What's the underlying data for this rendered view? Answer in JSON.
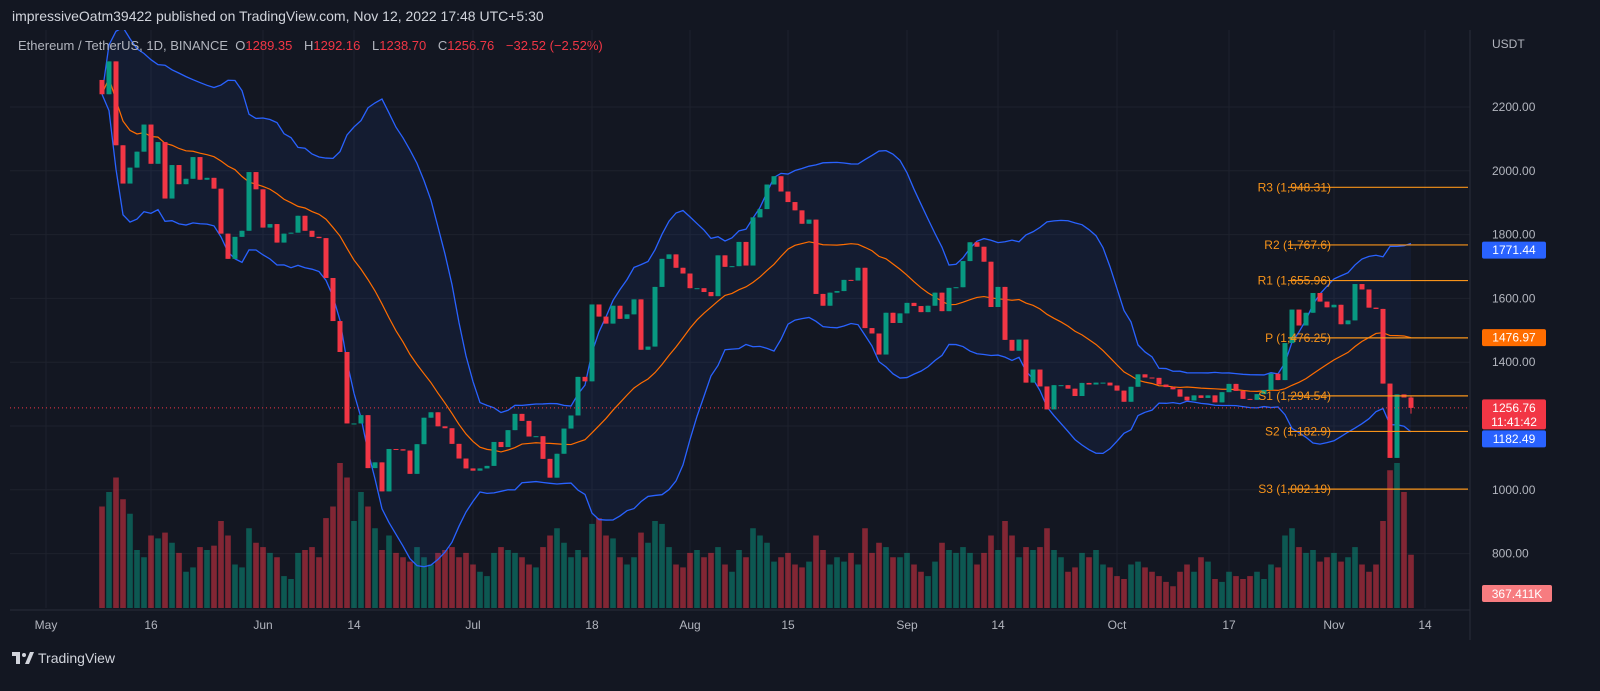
{
  "publisher": "impressiveOatm39422 published on TradingView.com, Nov 12, 2022 17:48 UTC+5:30",
  "footer_logo": "TradingView",
  "legend": {
    "symbol": "Ethereum / TetherUS, 1D, BINANCE",
    "o_label": "O",
    "o": "1289.35",
    "h_label": "H",
    "h": "1292.16",
    "l_label": "L",
    "l": "1238.70",
    "c_label": "C",
    "c": "1256.76",
    "change": "−32.52 (−2.52%)"
  },
  "colors": {
    "background": "#131722",
    "up": "#089981",
    "down": "#f23645",
    "band": "#2962ff",
    "basis": "#ff6d00",
    "pivot": "#f7931a"
  },
  "chart_data": {
    "type": "candlestick",
    "title": "",
    "ylabel": "USDT",
    "ylim": [
      700,
      2420
    ],
    "yticks": [
      "2200.00",
      "2000.00",
      "1800.00",
      "1600.00",
      "1400.00",
      "1000.00",
      "800.00"
    ],
    "ytick_values": [
      2200,
      2000,
      1800,
      1600,
      1400,
      1000,
      800
    ],
    "xticks": [
      "May",
      "16",
      "Jun",
      "14",
      "Jul",
      "18",
      "Aug",
      "15",
      "Sep",
      "14",
      "Oct",
      "17",
      "Nov",
      "14"
    ],
    "xtick_dates": [
      "2022-05-01",
      "2022-05-16",
      "2022-06-01",
      "2022-06-14",
      "2022-07-01",
      "2022-07-18",
      "2022-08-01",
      "2022-08-15",
      "2022-09-01",
      "2022-09-14",
      "2022-10-01",
      "2022-10-17",
      "2022-11-01",
      "2022-11-14"
    ],
    "start_date": "2022-05-09",
    "grid": true,
    "indicators": [
      "Bollinger Bands (20, 2)",
      "Pivot Points"
    ],
    "close": [
      2240,
      2343,
      2080,
      1960,
      2010,
      2060,
      2145,
      2022,
      2090,
      1913,
      2018,
      1958,
      1975,
      2043,
      1972,
      1978,
      1944,
      1803,
      1724,
      1793,
      1812,
      1996,
      1942,
      1822,
      1833,
      1775,
      1803,
      1806,
      1859,
      1812,
      1793,
      1789,
      1664,
      1529,
      1432,
      1208,
      1208,
      1234,
      1068,
      1086,
      995,
      1128,
      1127,
      1123,
      1050,
      1143,
      1226,
      1243,
      1199,
      1193,
      1144,
      1098,
      1067,
      1060,
      1067,
      1075,
      1150,
      1134,
      1187,
      1238,
      1216,
      1167,
      1168,
      1097,
      1038,
      1113,
      1192,
      1233,
      1354,
      1340,
      1581,
      1543,
      1521,
      1577,
      1536,
      1550,
      1597,
      1439,
      1449,
      1636,
      1724,
      1738,
      1696,
      1678,
      1632,
      1632,
      1620,
      1607,
      1735,
      1699,
      1701,
      1777,
      1703,
      1854,
      1880,
      1957,
      1983,
      1935,
      1902,
      1876,
      1834,
      1847,
      1614,
      1577,
      1618,
      1623,
      1658,
      1656,
      1696,
      1507,
      1490,
      1424,
      1555,
      1523,
      1553,
      1586,
      1576,
      1557,
      1577,
      1618,
      1560,
      1633,
      1635,
      1717,
      1776,
      1762,
      1715,
      1573,
      1636,
      1470,
      1436,
      1471,
      1336,
      1377,
      1324,
      1252,
      1328,
      1328,
      1317,
      1294,
      1335,
      1330,
      1336,
      1336,
      1327,
      1311,
      1276,
      1323,
      1362,
      1352,
      1351,
      1330,
      1322,
      1315,
      1292,
      1280,
      1296,
      1288,
      1296,
      1274,
      1306,
      1332,
      1310,
      1285,
      1282,
      1300,
      1313,
      1364,
      1344,
      1460,
      1565,
      1515,
      1555,
      1617,
      1590,
      1572,
      1580,
      1519,
      1531,
      1645,
      1628,
      1571,
      1567,
      1333,
      1100,
      1299,
      1289.35,
      1256.76
    ],
    "volume_k": [
      700,
      800,
      900,
      750,
      650,
      400,
      350,
      500,
      480,
      520,
      450,
      380,
      250,
      280,
      420,
      400,
      430,
      600,
      500,
      300,
      280,
      550,
      450,
      420,
      380,
      350,
      220,
      200,
      380,
      400,
      420,
      350,
      620,
      700,
      1000,
      900,
      600,
      800,
      700,
      550,
      400,
      500,
      380,
      350,
      320,
      420,
      350,
      300,
      380,
      400,
      420,
      350,
      380,
      300,
      250,
      220,
      380,
      420,
      400,
      380,
      350,
      300,
      280,
      420,
      500,
      550,
      450,
      350,
      400,
      350,
      580,
      620,
      500,
      480,
      350,
      300,
      350,
      520,
      450,
      600,
      580,
      420,
      300,
      280,
      380,
      400,
      350,
      380,
      420,
      300,
      250,
      400,
      350,
      550,
      500,
      450,
      320,
      350,
      380,
      300,
      280,
      320,
      500,
      400,
      300,
      350,
      320,
      380,
      300,
      550,
      380,
      450,
      420,
      350,
      350,
      380,
      300,
      250,
      220,
      320,
      450,
      400,
      380,
      420,
      380,
      300,
      380,
      500,
      400,
      600,
      500,
      350,
      420,
      400,
      420,
      550,
      400,
      350,
      250,
      280,
      380,
      350,
      400,
      300,
      280,
      220,
      200,
      300,
      320,
      280,
      250,
      220,
      180,
      150,
      250,
      300,
      250,
      350,
      320,
      200,
      180,
      250,
      220,
      200,
      220,
      250,
      200,
      300,
      280,
      500,
      550,
      420,
      380,
      400,
      320,
      350,
      380,
      320,
      350,
      420,
      300,
      250,
      300,
      600,
      950,
      1000,
      800,
      367.411
    ],
    "last_candle": {
      "open": 1289.35,
      "high": 1292.16,
      "low": 1238.7,
      "close": 1256.76
    },
    "pivots": [
      {
        "label": "R3 (1,948.31)",
        "value": 1948.31
      },
      {
        "label": "R2 (1,767.6)",
        "value": 1767.6
      },
      {
        "label": "R1 (1,655.96)",
        "value": 1655.96
      },
      {
        "label": "P (1,476.25)",
        "value": 1476.25
      },
      {
        "label": "S1 (1,294.54)",
        "value": 1294.54
      },
      {
        "label": "S2 (1,182.9)",
        "value": 1182.9
      },
      {
        "label": "S3 (1,002.19)",
        "value": 1002.19
      }
    ],
    "price_labels": [
      {
        "text": "1771.44",
        "value": 1771.44,
        "color": "#2962ff"
      },
      {
        "text": "1476.97",
        "value": 1476.97,
        "color": "#ff6d00"
      },
      {
        "text": "1256.76",
        "value": 1256.76,
        "color": "#f23645",
        "sub": "11:41:42"
      },
      {
        "text": "1182.49",
        "value": 1182.49,
        "color": "#2962ff"
      }
    ],
    "volume_label": "367.411K"
  }
}
